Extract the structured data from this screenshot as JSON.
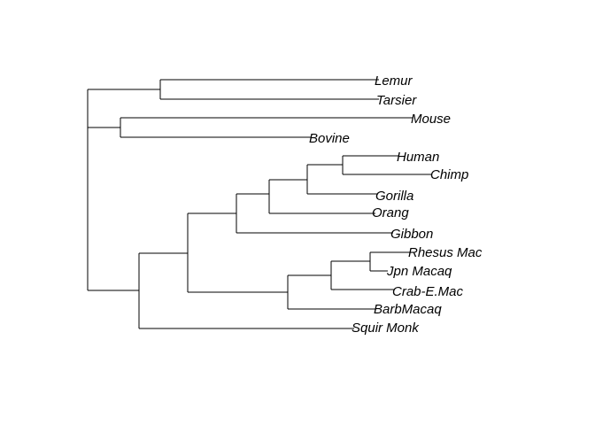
{
  "tree": {
    "type": "phylogram",
    "tips": [
      {
        "id": "lemur",
        "label": "Lemur"
      },
      {
        "id": "tarsier",
        "label": "Tarsier"
      },
      {
        "id": "mouse",
        "label": "Mouse"
      },
      {
        "id": "bovine",
        "label": "Bovine"
      },
      {
        "id": "human",
        "label": "Human"
      },
      {
        "id": "chimp",
        "label": "Chimp"
      },
      {
        "id": "gorilla",
        "label": "Gorilla"
      },
      {
        "id": "orang",
        "label": "Orang"
      },
      {
        "id": "gibbon",
        "label": "Gibbon"
      },
      {
        "id": "rhesus",
        "label": "Rhesus Mac"
      },
      {
        "id": "jpn",
        "label": "Jpn Macaq"
      },
      {
        "id": "crab",
        "label": "Crab-E.Mac"
      },
      {
        "id": "barb",
        "label": "BarbMacaq"
      },
      {
        "id": "squir",
        "label": "Squir Monk"
      }
    ],
    "clades": [
      [
        "Lemur",
        "Tarsier"
      ],
      [
        "Mouse",
        "Bovine"
      ],
      [
        "Human",
        "Chimp"
      ],
      [
        "Human",
        "Chimp",
        "Gorilla"
      ],
      [
        "Human",
        "Chimp",
        "Gorilla",
        "Orang"
      ],
      [
        "Human",
        "Chimp",
        "Gorilla",
        "Orang",
        "Gibbon"
      ],
      [
        "Rhesus Mac",
        "Jpn Macaq"
      ],
      [
        "Rhesus Mac",
        "Jpn Macaq",
        "Crab-E.Mac"
      ],
      [
        "Rhesus Mac",
        "Jpn Macaq",
        "Crab-E.Mac",
        "BarbMacaq"
      ],
      [
        "Human",
        "Chimp",
        "Gorilla",
        "Orang",
        "Gibbon",
        "Rhesus Mac",
        "Jpn Macaq",
        "Crab-E.Mac",
        "BarbMacaq"
      ],
      [
        "Human",
        "Chimp",
        "Gorilla",
        "Orang",
        "Gibbon",
        "Rhesus Mac",
        "Jpn Macaq",
        "Crab-E.Mac",
        "BarbMacaq",
        "Squir Monk"
      ]
    ]
  }
}
